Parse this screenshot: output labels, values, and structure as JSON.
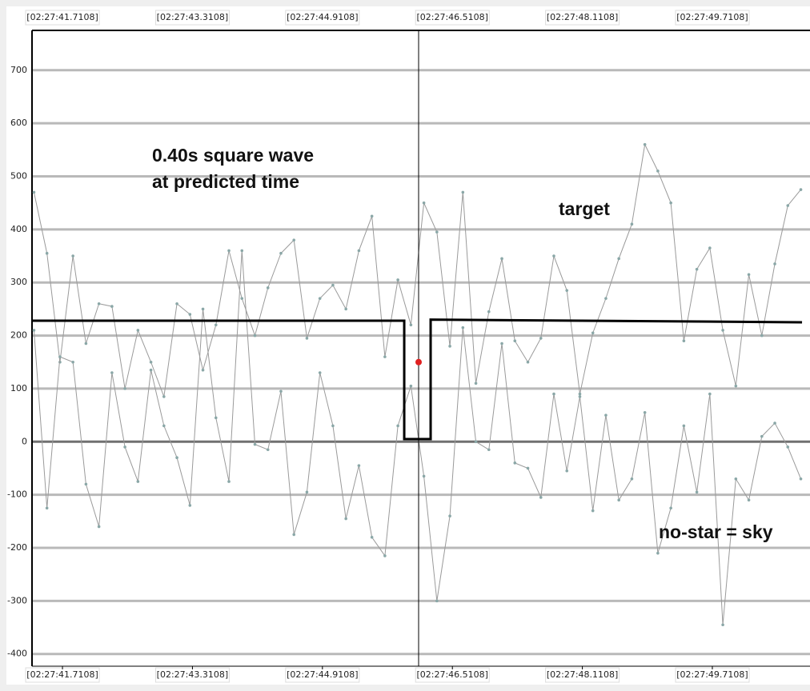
{
  "chart_data": {
    "type": "line",
    "xlim": [
      41.336,
      50.913
    ],
    "ylim": [
      -423,
      775
    ],
    "xticks": [
      {
        "value": 41.7108,
        "label": "[02:27:41.7108]"
      },
      {
        "value": 43.3108,
        "label": "[02:27:43.3108]"
      },
      {
        "value": 44.9108,
        "label": "[02:27:44.9108]"
      },
      {
        "value": 46.5108,
        "label": "[02:27:46.5108]"
      },
      {
        "value": 48.1108,
        "label": "[02:27:48.1108]"
      },
      {
        "value": 49.7108,
        "label": "[02:27:49.7108]"
      }
    ],
    "yticks": [
      -400,
      -300,
      -200,
      -100,
      0,
      100,
      200,
      300,
      400,
      500,
      600,
      700
    ],
    "grid": true,
    "annotations": [
      "0.40s square wave",
      "at predicted time",
      "target",
      "no-star = sky"
    ],
    "x": [
      41.36,
      41.52,
      41.68,
      41.84,
      42.0,
      42.16,
      42.32,
      42.48,
      42.64,
      42.8,
      42.96,
      43.12,
      43.28,
      43.44,
      43.6,
      43.76,
      43.92,
      44.08,
      44.24,
      44.4,
      44.56,
      44.72,
      44.88,
      45.04,
      45.2,
      45.36,
      45.52,
      45.68,
      45.84,
      46.0,
      46.16,
      46.32,
      46.48,
      46.64,
      46.8,
      46.96,
      47.12,
      47.28,
      47.44,
      47.6,
      47.76,
      47.92,
      48.08,
      48.24,
      48.4,
      48.56,
      48.72,
      48.88,
      49.04,
      49.2,
      49.36,
      49.52,
      49.68,
      49.84,
      50.0,
      50.16,
      50.32,
      50.48,
      50.64,
      50.8
    ],
    "series": [
      {
        "color": "#9a9a9a",
        "values": [
          470,
          355,
          150,
          350,
          185,
          260,
          255,
          100,
          210,
          150,
          85,
          260,
          240,
          135,
          220,
          360,
          270,
          200,
          290,
          355,
          380,
          195,
          270,
          295,
          250,
          360,
          425,
          160,
          305,
          220,
          450,
          395,
          180,
          470,
          110,
          245,
          345,
          190,
          150,
          195,
          350,
          285,
          90,
          205,
          270,
          345,
          410,
          560,
          510,
          450,
          190,
          325,
          365,
          210,
          105,
          315,
          200,
          335,
          445,
          475
        ]
      },
      {
        "color": "#9a9a9a",
        "values": [
          210,
          -125,
          160,
          150,
          -80,
          -160,
          130,
          -10,
          -75,
          135,
          30,
          -30,
          -120,
          250,
          45,
          -75,
          360,
          -5,
          -15,
          95,
          -175,
          -95,
          130,
          30,
          -145,
          -45,
          -180,
          -215,
          30,
          105,
          -65,
          -300,
          -140,
          215,
          0,
          -15,
          185,
          -40,
          -50,
          -105,
          90,
          -55,
          85,
          -130,
          50,
          -110,
          -70,
          55,
          -210,
          -125,
          30,
          -95,
          90,
          -345,
          -70,
          -110,
          10,
          35,
          -10,
          -70
        ]
      },
      {
        "color": "#000000",
        "x": [
          41.336,
          45.918,
          45.918,
          46.243,
          46.243,
          50.815
        ],
        "values": [
          228,
          228,
          5,
          5,
          230,
          225
        ]
      }
    ],
    "marker": {
      "x": 46.095,
      "value": 150,
      "color": "#e02020"
    }
  }
}
